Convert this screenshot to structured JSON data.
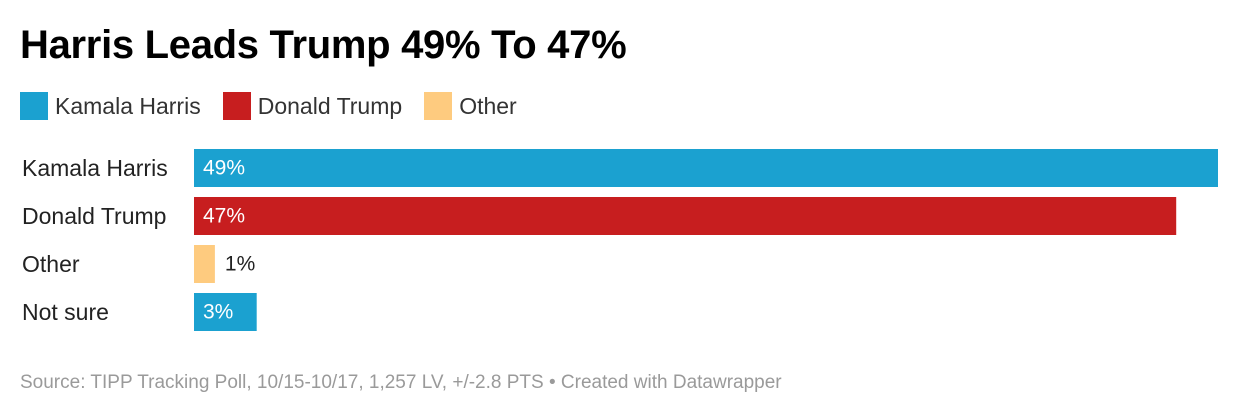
{
  "title": "Harris Leads Trump 49% To 47%",
  "legend": [
    {
      "label": "Kamala Harris",
      "color": "#1ba1d0"
    },
    {
      "label": "Donald Trump",
      "color": "#c71e1f"
    },
    {
      "label": "Other",
      "color": "#fecb7f"
    }
  ],
  "chart_data": {
    "type": "bar",
    "orientation": "horizontal",
    "categories": [
      "Kamala Harris",
      "Donald Trump",
      "Other",
      "Not sure"
    ],
    "values": [
      49,
      47,
      1,
      3
    ],
    "value_labels": [
      "49%",
      "47%",
      "1%",
      "3%"
    ],
    "colors": [
      "#1ba1d0",
      "#c71e1f",
      "#fecb7f",
      "#1ba1d0"
    ],
    "xlim": [
      0,
      49
    ],
    "grid": false
  },
  "footer": "Source: TIPP Tracking Poll, 10/15-10/17, 1,257 LV, +/-2.8 PTS • Created with Datawrapper"
}
